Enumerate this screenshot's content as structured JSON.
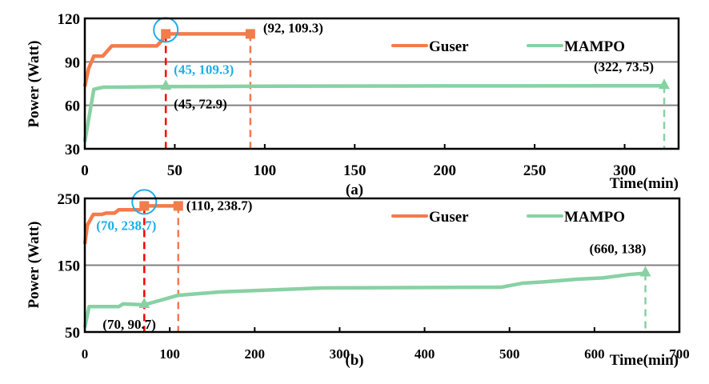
{
  "colors": {
    "guser": "#F47B4B",
    "mampo": "#88D1A4",
    "highlight": "#1EAEE8",
    "marker_line": "#FF0000",
    "grid": "#808080"
  },
  "chart_data": [
    {
      "type": "line",
      "panel_label": "(a)",
      "xlabel": "Time(min)",
      "ylabel": "Power (Watt)",
      "xlim": [
        0,
        330
      ],
      "ylim": [
        30,
        120
      ],
      "xticks": [
        0,
        50,
        100,
        150,
        200,
        250,
        300
      ],
      "yticks": [
        30,
        60,
        90,
        120
      ],
      "grid": "horizontal",
      "legend": "top-right",
      "series": [
        {
          "name": "Guser",
          "color": "#F47B4B",
          "x": [
            0,
            2,
            5,
            10,
            15,
            40,
            43,
            45,
            92
          ],
          "y": [
            73,
            85,
            94,
            94,
            101,
            101,
            105,
            109.3,
            109.3
          ]
        },
        {
          "name": "MAMPO",
          "color": "#88D1A4",
          "x": [
            0,
            5,
            10,
            20,
            45,
            100,
            200,
            322
          ],
          "y": [
            35,
            71,
            72.5,
            72.6,
            72.9,
            73.2,
            73.4,
            73.5
          ]
        }
      ],
      "annotations": [
        {
          "text": "(45, 109.3)",
          "x": 45,
          "y": 109.3,
          "series": "Guser",
          "color": "#1EAEE8",
          "circled": true,
          "vline_color": "#FF0000",
          "marker": "square"
        },
        {
          "text": "(92, 109.3)",
          "x": 92,
          "y": 109.3,
          "series": "Guser",
          "color": "#000000",
          "vline_color": "#F47B4B",
          "marker": "square"
        },
        {
          "text": "(45, 72.9)",
          "x": 45,
          "y": 72.9,
          "series": "MAMPO",
          "color": "#000000",
          "marker": "triangle"
        },
        {
          "text": "(322, 73.5)",
          "x": 322,
          "y": 73.5,
          "series": "MAMPO",
          "color": "#000000",
          "vline_color": "#88D1A4",
          "marker": "triangle"
        }
      ]
    },
    {
      "type": "line",
      "panel_label": "(b)",
      "xlabel": "Time(min)",
      "ylabel": "Power (Watt)",
      "xlim": [
        0,
        700
      ],
      "ylim": [
        50,
        250
      ],
      "xticks": [
        0,
        100,
        200,
        300,
        400,
        500,
        600,
        700
      ],
      "yticks": [
        50,
        150,
        250
      ],
      "grid": "horizontal",
      "legend": "top-right",
      "series": [
        {
          "name": "Guser",
          "color": "#F47B4B",
          "x": [
            0,
            3,
            10,
            20,
            25,
            35,
            40,
            65,
            70,
            110
          ],
          "y": [
            182,
            210,
            226,
            226,
            228,
            228,
            233,
            233,
            238.7,
            238.7
          ]
        },
        {
          "name": "MAMPO",
          "color": "#88D1A4",
          "x": [
            0,
            5,
            40,
            45,
            70,
            110,
            160,
            280,
            490,
            515,
            540,
            580,
            610,
            640,
            660
          ],
          "y": [
            57,
            88,
            88,
            92,
            90.7,
            105,
            110,
            116,
            117,
            123,
            125,
            129,
            131,
            136,
            138
          ]
        }
      ],
      "annotations": [
        {
          "text": "(70, 238.7)",
          "x": 70,
          "y": 238.7,
          "series": "Guser",
          "color": "#1EAEE8",
          "circled": true,
          "vline_color": "#FF0000",
          "marker": "square"
        },
        {
          "text": "(110, 238.7)",
          "x": 110,
          "y": 238.7,
          "series": "Guser",
          "color": "#000000",
          "vline_color": "#F47B4B",
          "marker": "square"
        },
        {
          "text": "(70, 90.7)",
          "x": 70,
          "y": 90.7,
          "series": "MAMPO",
          "color": "#000000",
          "marker": "triangle"
        },
        {
          "text": "(660, 138)",
          "x": 660,
          "y": 138,
          "series": "MAMPO",
          "color": "#000000",
          "vline_color": "#88D1A4",
          "marker": "triangle"
        }
      ]
    }
  ]
}
